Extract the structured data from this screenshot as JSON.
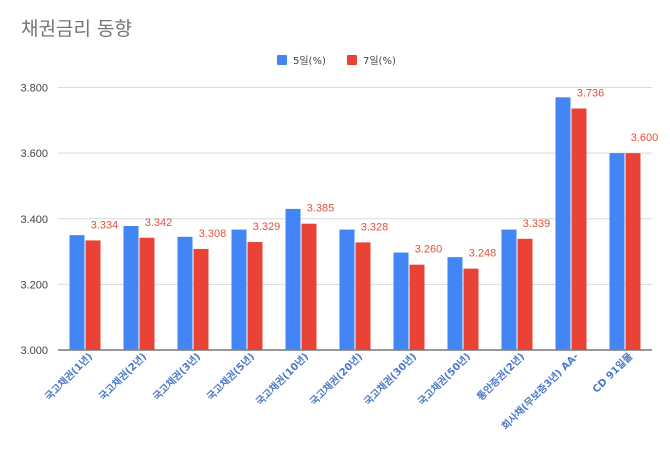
{
  "chart_data": {
    "type": "bar",
    "title": "채권금리 동향",
    "categories": [
      "국고채권(1년)",
      "국고채권(2년)",
      "국고채권(3년)",
      "국고채권(5년)",
      "국고채권(10년)",
      "국고채권(20년)",
      "국고채권(30년)",
      "국고채권(50년)",
      "통안증권(2년)",
      "회사채(무보증3년) AA-",
      "CD 91일물"
    ],
    "series": [
      {
        "name": "5일(%)",
        "color": "#4285f4",
        "values": [
          3.35,
          3.378,
          3.345,
          3.367,
          3.43,
          3.367,
          3.297,
          3.283,
          3.367,
          3.77,
          3.6
        ]
      },
      {
        "name": "7일(%)",
        "color": "#ea4335",
        "values": [
          3.334,
          3.342,
          3.308,
          3.329,
          3.385,
          3.328,
          3.26,
          3.248,
          3.339,
          3.736,
          3.6
        ]
      }
    ],
    "data_labels": [
      "3.334",
      "3.342",
      "3.308",
      "3.329",
      "3.385",
      "3.328",
      "3.260",
      "3.248",
      "3.339",
      "3.736",
      "3.600"
    ],
    "yticks": [
      "3.000",
      "3.200",
      "3.400",
      "3.600",
      "3.800"
    ],
    "ylim": [
      3.0,
      3.84
    ],
    "grid": true,
    "legend": "top-center"
  }
}
